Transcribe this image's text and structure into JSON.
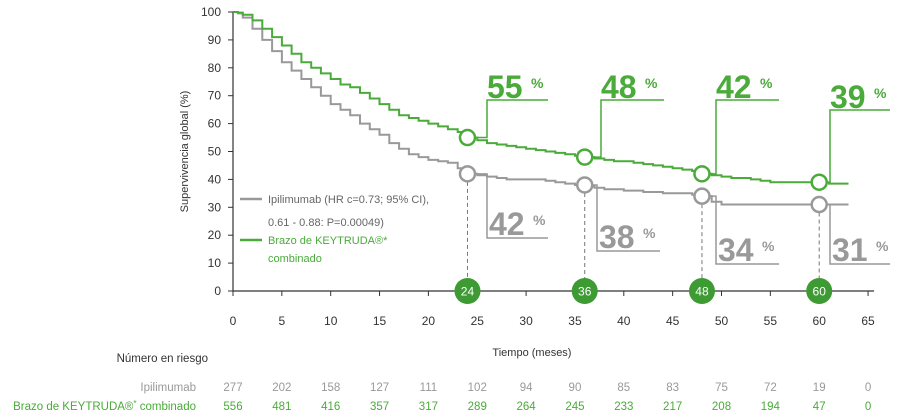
{
  "colors": {
    "gray": "#999999",
    "green": "#4aab3a",
    "dark_green": "#3e9a32",
    "axis": "#333333"
  },
  "chart_data": {
    "type": "line",
    "xlabel": "Tiempo (meses)",
    "ylabel": "Supervivencia global (%)",
    "xlim": [
      0,
      65
    ],
    "ylim": [
      0,
      100
    ],
    "xticks": [
      0,
      5,
      10,
      15,
      20,
      25,
      30,
      35,
      40,
      45,
      50,
      55,
      60,
      65
    ],
    "yticks": [
      0,
      10,
      20,
      30,
      40,
      50,
      60,
      70,
      80,
      90,
      100
    ],
    "grid": false,
    "legend_position": "center-left",
    "series": [
      {
        "name": "Ipilimumab",
        "legend_line1": "Ipilimumab (HR  c=0.73; 95% CI),",
        "legend_line2": "0.61 - 0.88: P=0.00049)",
        "color": "#999999",
        "x": [
          0,
          0.5,
          1,
          2,
          3,
          4,
          5,
          6,
          7,
          8,
          9,
          10,
          11,
          12,
          13,
          14,
          15,
          16,
          17,
          18,
          19,
          20,
          21,
          22,
          23,
          24,
          25,
          26,
          27,
          28,
          29,
          30,
          31,
          32,
          33,
          34,
          35,
          36,
          37,
          38,
          39,
          40,
          41,
          42,
          43,
          44,
          45,
          46,
          47,
          48,
          49,
          50,
          51,
          52,
          53,
          54,
          55,
          56,
          57,
          58,
          59,
          60,
          61,
          62,
          63
        ],
        "y": [
          100,
          99.5,
          98,
          94,
          90,
          86,
          82,
          79,
          76,
          73,
          70,
          67,
          65,
          63,
          60,
          58,
          56,
          53,
          51,
          49,
          48,
          47,
          46.5,
          46,
          44,
          42,
          41.5,
          41,
          40.5,
          40,
          40,
          40,
          40,
          39.5,
          39,
          38.5,
          38,
          37.5,
          37,
          36.5,
          36.5,
          36,
          36,
          35.5,
          35.5,
          35,
          35,
          35,
          34.5,
          34,
          32,
          31,
          31,
          31,
          31,
          31,
          31,
          31,
          31,
          31,
          31,
          31,
          31,
          31,
          31
        ]
      },
      {
        "name": "Brazo de KEYTRUDA combinado",
        "legend_line1": "Brazo de KEYTRUDA®*",
        "legend_line2": "combinado",
        "color": "#4aab3a",
        "x": [
          0,
          0.5,
          1,
          2,
          3,
          4,
          5,
          6,
          7,
          8,
          9,
          10,
          11,
          12,
          13,
          14,
          15,
          16,
          17,
          18,
          19,
          20,
          21,
          22,
          23,
          24,
          25,
          26,
          27,
          28,
          29,
          30,
          31,
          32,
          33,
          34,
          35,
          36,
          37,
          38,
          39,
          40,
          41,
          42,
          43,
          44,
          45,
          46,
          47,
          48,
          49,
          50,
          51,
          52,
          53,
          54,
          55,
          56,
          57,
          58,
          59,
          60,
          61,
          62,
          63
        ],
        "y": [
          100,
          99.8,
          99,
          97,
          94,
          91,
          88,
          85,
          82,
          80,
          78,
          76,
          74,
          73,
          71,
          69,
          67,
          65,
          63,
          62,
          61,
          60,
          59,
          58,
          57,
          55,
          54,
          53,
          52.5,
          52,
          51.5,
          51,
          50.5,
          50,
          49.5,
          49,
          48.5,
          48,
          47.5,
          47,
          46.5,
          46.5,
          46,
          45.5,
          45,
          44.5,
          44,
          43.5,
          43,
          42,
          41.5,
          41,
          40.5,
          40.5,
          40,
          39.5,
          39,
          39,
          39,
          39,
          39,
          39,
          38.5,
          38.5,
          38.5
        ]
      }
    ],
    "timepoints": [
      {
        "month": 24,
        "label": "24",
        "green": 55,
        "gray": 42,
        "green_text": "55",
        "gray_text": "42"
      },
      {
        "month": 36,
        "label": "36",
        "green": 48,
        "gray": 38,
        "green_text": "48",
        "gray_text": "38"
      },
      {
        "month": 48,
        "label": "48",
        "green": 42,
        "gray": 34,
        "green_text": "42",
        "gray_text": "34"
      },
      {
        "month": 60,
        "label": "60",
        "green": 39,
        "gray": 31,
        "green_text": "39",
        "gray_text": "31"
      }
    ],
    "percent_symbol": "%"
  },
  "risk_table": {
    "title": "Número en riesgo",
    "months": [
      0,
      5,
      10,
      15,
      20,
      25,
      30,
      35,
      40,
      45,
      50,
      55,
      60,
      65
    ],
    "rows": [
      {
        "label_main": "Ipilimumab",
        "label_prefix": "",
        "label_sup": "",
        "color": "#999999",
        "values": [
          "277",
          "202",
          "158",
          "127",
          "111",
          "102",
          "94",
          "90",
          "85",
          "83",
          "75",
          "72",
          "19",
          "0"
        ]
      },
      {
        "label_main": "combinado",
        "label_prefix": "Brazo de KEYTRUDA®",
        "label_sup": "*",
        "color": "#4aab3a",
        "values": [
          "556",
          "481",
          "416",
          "357",
          "317",
          "289",
          "264",
          "245",
          "233",
          "217",
          "208",
          "194",
          "47",
          "0"
        ]
      }
    ]
  }
}
